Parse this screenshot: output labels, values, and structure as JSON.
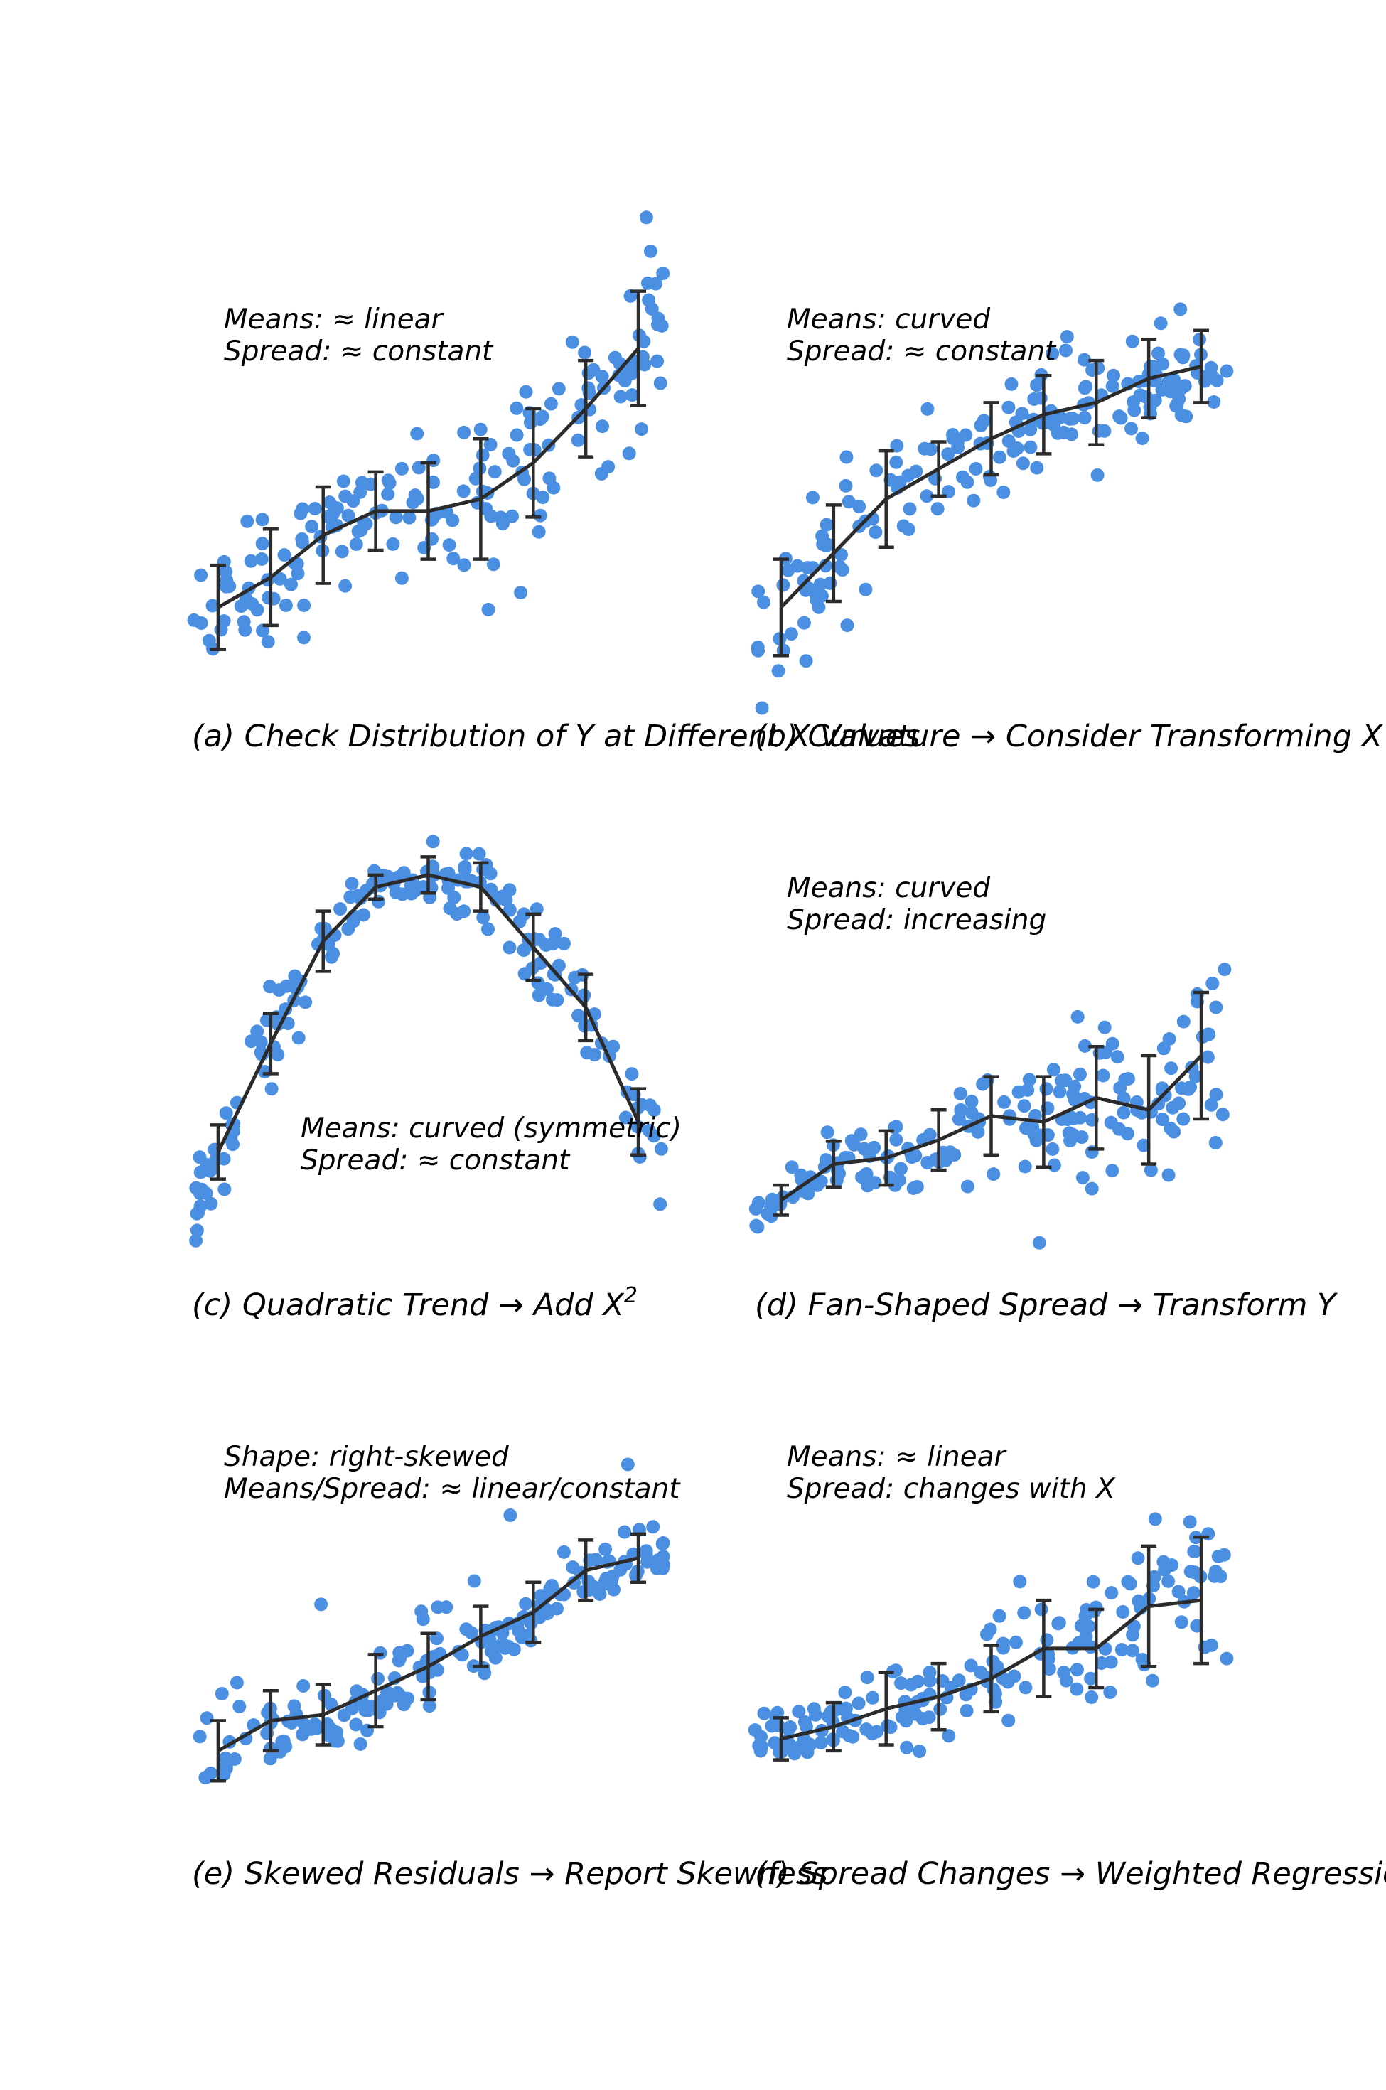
{
  "colors": {
    "point": "#4a8fe2",
    "line": "#2b2b2b",
    "text": "#000000",
    "background": "#ffffff"
  },
  "chart_data": [
    {
      "type": "scatter",
      "panel": "a",
      "title": "(a) Check Distribution of Y at Different X Values",
      "annotation": [
        "Means: ≈ linear",
        "Spread: ≈ constant"
      ],
      "xlim": [
        0,
        9
      ],
      "ylim": [
        -0.6,
        6.6
      ],
      "grid": false,
      "axes_visible": false,
      "means": {
        "x": [
          0.5,
          1.5,
          2.5,
          3.5,
          4.5,
          5.5,
          6.5,
          7.5,
          8.5
        ],
        "y": [
          1.0,
          1.5,
          2.2,
          2.6,
          2.6,
          2.8,
          3.4,
          4.3,
          5.3
        ],
        "sd": [
          0.7,
          0.8,
          0.8,
          0.65,
          0.8,
          1.0,
          0.9,
          0.8,
          0.95
        ]
      },
      "n_points": 180,
      "noise": "normal"
    },
    {
      "type": "scatter",
      "panel": "b",
      "title": "(b) Curvature → Consider Transforming X",
      "annotation": [
        "Means: curved",
        "Spread: ≈ constant"
      ],
      "xlim": [
        0,
        9
      ],
      "ylim": [
        -0.6,
        6.6
      ],
      "grid": false,
      "axes_visible": false,
      "means": {
        "x": [
          0.5,
          1.5,
          2.5,
          3.5,
          4.5,
          5.5,
          6.5,
          7.5,
          8.5
        ],
        "y": [
          1.0,
          1.9,
          2.8,
          3.3,
          3.8,
          4.2,
          4.4,
          4.8,
          5.0
        ],
        "sd": [
          0.8,
          0.8,
          0.8,
          0.45,
          0.6,
          0.65,
          0.7,
          0.65,
          0.6
        ]
      },
      "n_points": 180,
      "noise": "normal"
    },
    {
      "type": "scatter",
      "panel": "c",
      "title": "(c) Quadratic Trend → Add X",
      "title_superscript": "2",
      "annotation": [
        "Means: curved (symmetric)",
        "Spread: ≈ constant"
      ],
      "xlim": [
        0,
        9
      ],
      "ylim": [
        -0.6,
        6.6
      ],
      "grid": false,
      "axes_visible": false,
      "means": {
        "x": [
          0.5,
          1.5,
          2.5,
          3.5,
          4.5,
          5.5,
          6.5,
          7.5,
          8.5
        ],
        "y": [
          1.4,
          3.2,
          4.9,
          5.8,
          6.0,
          5.8,
          4.8,
          3.8,
          1.9
        ],
        "sd": [
          0.45,
          0.5,
          0.5,
          0.2,
          0.3,
          0.4,
          0.55,
          0.55,
          0.55
        ]
      },
      "n_points": 180,
      "noise": "normal"
    },
    {
      "type": "scatter",
      "panel": "d",
      "title": "(d) Fan-Shaped Spread → Transform Y",
      "annotation": [
        "Means: curved",
        "Spread: increasing"
      ],
      "xlim": [
        0,
        9
      ],
      "ylim": [
        -0.6,
        6.6
      ],
      "grid": false,
      "axes_visible": false,
      "means": {
        "x": [
          0.5,
          1.5,
          2.5,
          3.5,
          4.5,
          5.5,
          6.5,
          7.5,
          8.5
        ],
        "y": [
          0.6,
          1.2,
          1.3,
          1.6,
          2.0,
          1.9,
          2.3,
          2.1,
          3.0
        ],
        "sd": [
          0.25,
          0.38,
          0.45,
          0.5,
          0.65,
          0.75,
          0.85,
          0.9,
          1.05
        ]
      },
      "n_points": 180,
      "noise": "normal"
    },
    {
      "type": "scatter",
      "panel": "e",
      "title": "(e) Skewed Residuals → Report Skewness",
      "annotation": [
        "Shape: right-skewed",
        "Means/Spread: ≈ linear/constant"
      ],
      "xlim": [
        0,
        9
      ],
      "ylim": [
        -0.6,
        6.6
      ],
      "grid": false,
      "axes_visible": false,
      "means": {
        "x": [
          0.5,
          1.5,
          2.5,
          3.5,
          4.5,
          5.5,
          6.5,
          7.5,
          8.5
        ],
        "y": [
          0.9,
          1.4,
          1.5,
          1.9,
          2.3,
          2.8,
          3.2,
          3.9,
          4.1
        ],
        "sd": [
          0.5,
          0.5,
          0.5,
          0.6,
          0.55,
          0.5,
          0.5,
          0.5,
          0.4
        ]
      },
      "n_points": 180,
      "noise": "right-skewed"
    },
    {
      "type": "scatter",
      "panel": "f",
      "title": "(f) Spread Changes → Weighted Regression",
      "annotation": [
        "Means: ≈ linear",
        "Spread: changes with X"
      ],
      "xlim": [
        0,
        9
      ],
      "ylim": [
        -0.6,
        6.6
      ],
      "grid": false,
      "axes_visible": false,
      "means": {
        "x": [
          0.5,
          1.5,
          2.5,
          3.5,
          4.5,
          5.5,
          6.5,
          7.5,
          8.5
        ],
        "y": [
          1.1,
          1.3,
          1.6,
          1.8,
          2.1,
          2.6,
          2.6,
          3.3,
          3.4
        ],
        "sd": [
          0.35,
          0.4,
          0.6,
          0.55,
          0.55,
          0.8,
          0.65,
          1.0,
          1.05
        ]
      },
      "n_points": 180,
      "noise": "normal"
    }
  ]
}
